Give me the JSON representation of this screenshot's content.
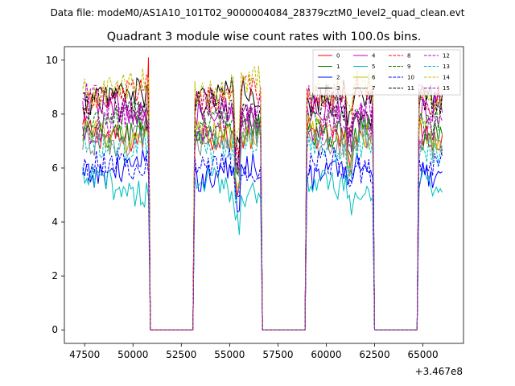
{
  "figure": {
    "suptitle": "Data file: modeM0/AS1A10_101T02_9000004084_28379cztM0_level2_quad_clean.evt"
  },
  "chart_data": {
    "type": "line",
    "title": "Quadrant 3 module wise count rates with 100.0s bins.",
    "xlabel": "",
    "ylabel": "",
    "x_offset_label": "+3.467e8",
    "xlim": [
      46450,
      67100
    ],
    "ylim": [
      -0.5,
      10.5
    ],
    "xticks": [
      47500,
      50000,
      52500,
      55000,
      57500,
      60000,
      62500,
      65000
    ],
    "xtick_labels": [
      "47500",
      "50000",
      "52500",
      "55000",
      "57500",
      "60000",
      "62500",
      "65000"
    ],
    "yticks": [
      0,
      2,
      4,
      6,
      8,
      10
    ],
    "ytick_labels": [
      "0",
      "2",
      "4",
      "6",
      "8",
      "10"
    ],
    "bin_width_s": 100,
    "grid": false,
    "legend_position": "top-right",
    "gaps": [
      [
        51000,
        53000
      ],
      [
        56800,
        58800
      ],
      [
        62600,
        64600
      ]
    ],
    "on_segments": [
      [
        47400,
        50800
      ],
      [
        53200,
        56600
      ],
      [
        59000,
        62400
      ],
      [
        64800,
        66000
      ]
    ],
    "series": [
      {
        "name": "0",
        "color": "#ff0000",
        "dash": "solid",
        "level": 7.3
      },
      {
        "name": "1",
        "color": "#008000",
        "dash": "solid",
        "level": 7.4
      },
      {
        "name": "2",
        "color": "#0000ff",
        "dash": "solid",
        "level": 5.9
      },
      {
        "name": "3",
        "color": "#000000",
        "dash": "solid",
        "level": 8.6
      },
      {
        "name": "4",
        "color": "#bf00bf",
        "dash": "solid",
        "level": 8.0
      },
      {
        "name": "5",
        "color": "#00bfbf",
        "dash": "solid",
        "level": 5.3
      },
      {
        "name": "6",
        "color": "#bfbf00",
        "dash": "solid",
        "level": 7.3
      },
      {
        "name": "7",
        "color": "#888888",
        "dash": "solid",
        "level": 7.1
      },
      {
        "name": "8",
        "color": "#ff0000",
        "dash": "dashed",
        "level": 8.7
      },
      {
        "name": "9",
        "color": "#008000",
        "dash": "dashed",
        "level": 7.7
      },
      {
        "name": "10",
        "color": "#0000ff",
        "dash": "dashed",
        "level": 6.0
      },
      {
        "name": "11",
        "color": "#000000",
        "dash": "dashed",
        "level": 8.2
      },
      {
        "name": "12",
        "color": "#bf00bf",
        "dash": "dashed",
        "level": 8.4
      },
      {
        "name": "13",
        "color": "#00bfbf",
        "dash": "dashed",
        "level": 6.9
      },
      {
        "name": "14",
        "color": "#bfbf00",
        "dash": "dashed",
        "level": 9.0
      },
      {
        "name": "15",
        "color": "#bf00bf",
        "dash": "dashed",
        "level": 7.6
      }
    ]
  }
}
